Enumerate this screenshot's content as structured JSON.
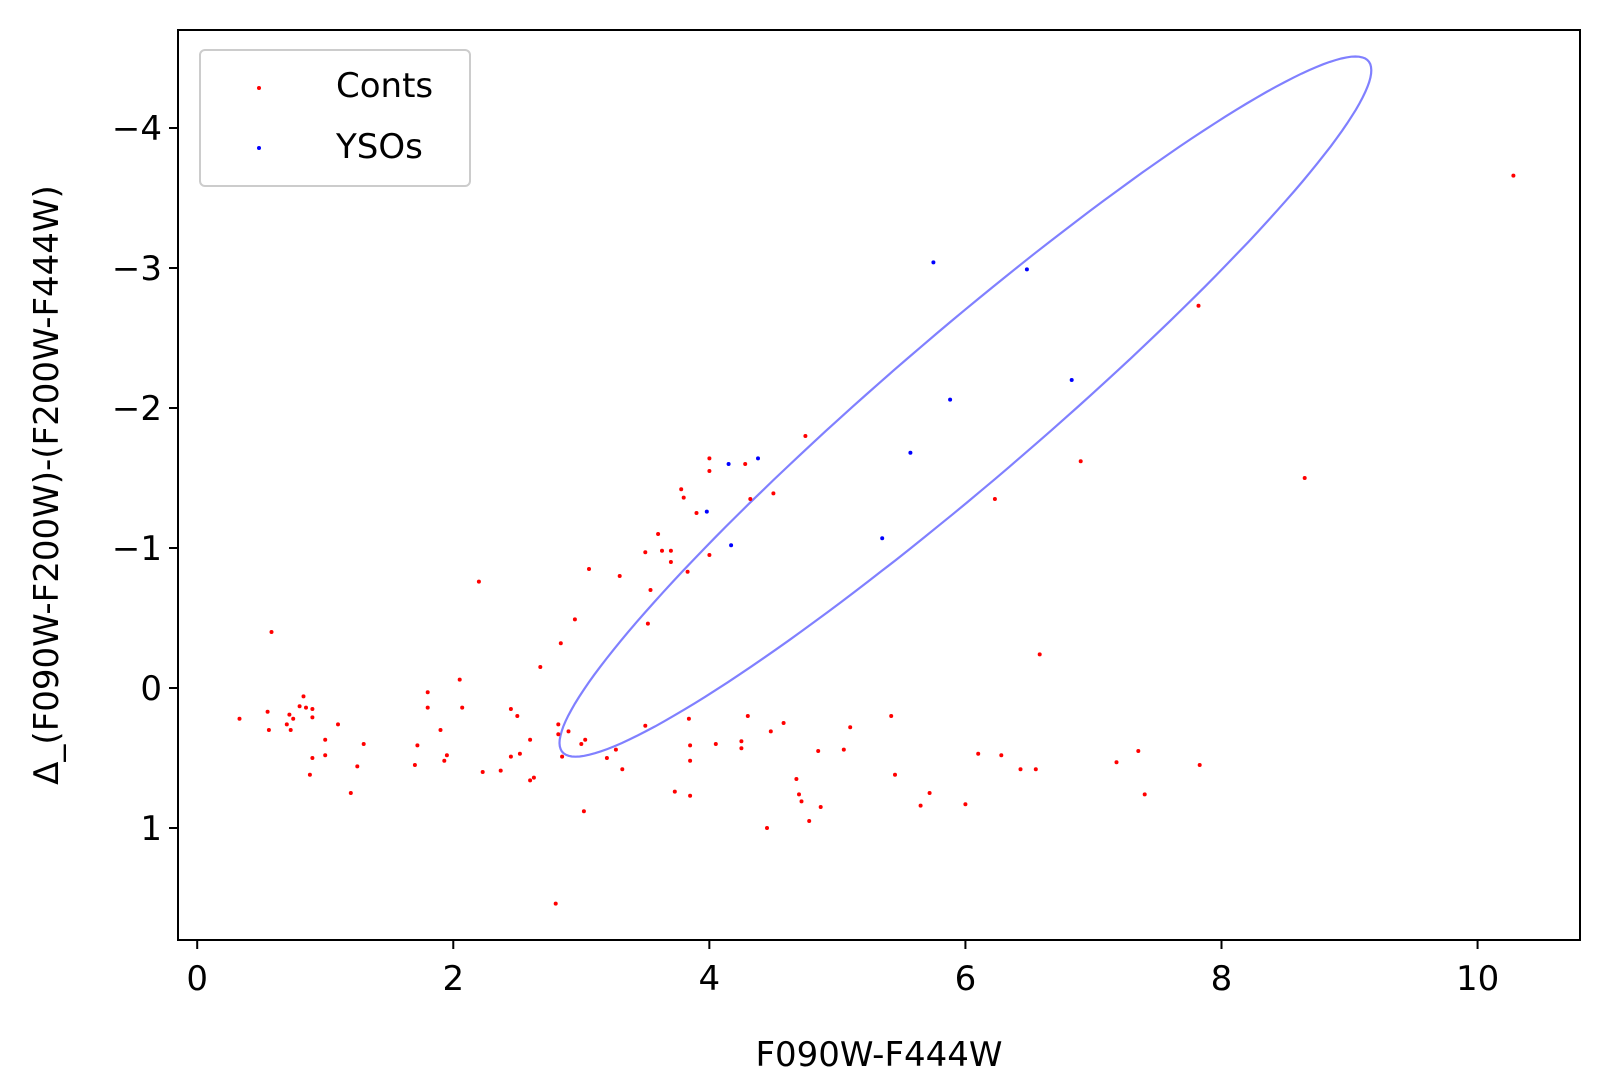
{
  "chart_data": {
    "type": "scatter",
    "xlabel": "F090W-F444W",
    "ylabel": "Δ_(F090W-F200W)-(F200W-F444W)",
    "xlim": [
      -0.15,
      10.8
    ],
    "ylim": [
      1.8,
      -4.7
    ],
    "y_inverted": true,
    "xticks": [
      0,
      2,
      4,
      6,
      8,
      10
    ],
    "xtick_labels": [
      "0",
      "2",
      "4",
      "6",
      "8",
      "10"
    ],
    "yticks": [
      -4,
      -3,
      -2,
      -1,
      0,
      1
    ],
    "ytick_labels": [
      "−4",
      "−3",
      "−2",
      "−1",
      "0",
      "1"
    ],
    "grid": false,
    "legend_placement": "top-left",
    "series": [
      {
        "name": "Conts",
        "color": "#ff0000",
        "points": [
          [
            0.33,
            0.22
          ],
          [
            0.55,
            0.17
          ],
          [
            0.56,
            0.3
          ],
          [
            0.58,
            -0.4
          ],
          [
            0.7,
            0.26
          ],
          [
            0.72,
            0.19
          ],
          [
            0.73,
            0.3
          ],
          [
            0.75,
            0.22
          ],
          [
            0.8,
            0.13
          ],
          [
            0.83,
            0.06
          ],
          [
            0.85,
            0.14
          ],
          [
            0.88,
            0.62
          ],
          [
            0.9,
            0.15
          ],
          [
            0.9,
            0.21
          ],
          [
            0.9,
            0.5
          ],
          [
            1.0,
            0.37
          ],
          [
            1.0,
            0.48
          ],
          [
            1.1,
            0.26
          ],
          [
            1.2,
            0.75
          ],
          [
            1.25,
            0.56
          ],
          [
            1.3,
            0.4
          ],
          [
            1.7,
            0.55
          ],
          [
            1.72,
            0.41
          ],
          [
            1.8,
            0.03
          ],
          [
            1.8,
            0.14
          ],
          [
            1.9,
            0.3
          ],
          [
            1.93,
            0.52
          ],
          [
            1.95,
            0.48
          ],
          [
            2.05,
            -0.06
          ],
          [
            2.07,
            0.14
          ],
          [
            2.2,
            -0.76
          ],
          [
            2.23,
            0.6
          ],
          [
            2.37,
            0.59
          ],
          [
            2.45,
            0.15
          ],
          [
            2.45,
            0.49
          ],
          [
            2.5,
            0.2
          ],
          [
            2.52,
            0.47
          ],
          [
            2.6,
            0.37
          ],
          [
            2.6,
            0.66
          ],
          [
            2.63,
            0.64
          ],
          [
            2.68,
            -0.15
          ],
          [
            2.8,
            1.54
          ],
          [
            2.82,
            0.26
          ],
          [
            2.82,
            0.33
          ],
          [
            2.84,
            -0.32
          ],
          [
            2.85,
            0.49
          ],
          [
            2.9,
            0.31
          ],
          [
            2.95,
            -0.49
          ],
          [
            3.0,
            0.4
          ],
          [
            3.02,
            0.88
          ],
          [
            3.03,
            0.37
          ],
          [
            3.06,
            -0.85
          ],
          [
            3.2,
            0.5
          ],
          [
            3.27,
            0.44
          ],
          [
            3.3,
            -0.8
          ],
          [
            3.32,
            0.58
          ],
          [
            3.5,
            0.27
          ],
          [
            3.5,
            -0.97
          ],
          [
            3.52,
            -0.46
          ],
          [
            3.54,
            -0.7
          ],
          [
            3.6,
            -1.1
          ],
          [
            3.63,
            -0.98
          ],
          [
            3.7,
            -0.9
          ],
          [
            3.7,
            -0.98
          ],
          [
            3.73,
            0.74
          ],
          [
            3.78,
            -1.42
          ],
          [
            3.8,
            -1.36
          ],
          [
            3.83,
            -0.83
          ],
          [
            3.84,
            0.22
          ],
          [
            3.85,
            0.41
          ],
          [
            3.85,
            0.52
          ],
          [
            3.85,
            0.77
          ],
          [
            3.9,
            -1.25
          ],
          [
            4.0,
            -1.64
          ],
          [
            4.0,
            -1.55
          ],
          [
            4.0,
            -0.95
          ],
          [
            4.05,
            0.4
          ],
          [
            4.25,
            0.38
          ],
          [
            4.25,
            0.43
          ],
          [
            4.28,
            -1.6
          ],
          [
            4.3,
            0.2
          ],
          [
            4.32,
            -1.35
          ],
          [
            4.45,
            1.0
          ],
          [
            4.48,
            0.31
          ],
          [
            4.5,
            -1.39
          ],
          [
            4.58,
            0.25
          ],
          [
            4.68,
            0.65
          ],
          [
            4.7,
            0.76
          ],
          [
            4.72,
            0.81
          ],
          [
            4.75,
            -1.8
          ],
          [
            4.78,
            0.95
          ],
          [
            4.85,
            0.45
          ],
          [
            4.87,
            0.85
          ],
          [
            5.05,
            0.44
          ],
          [
            5.1,
            0.28
          ],
          [
            5.42,
            0.2
          ],
          [
            5.45,
            0.62
          ],
          [
            5.65,
            0.84
          ],
          [
            5.72,
            0.75
          ],
          [
            6.0,
            0.83
          ],
          [
            6.1,
            0.47
          ],
          [
            6.23,
            -1.35
          ],
          [
            6.28,
            0.48
          ],
          [
            6.43,
            0.58
          ],
          [
            6.55,
            0.58
          ],
          [
            6.58,
            -0.24
          ],
          [
            6.9,
            -1.62
          ],
          [
            7.18,
            0.53
          ],
          [
            7.35,
            0.45
          ],
          [
            7.4,
            0.76
          ],
          [
            7.82,
            -2.73
          ],
          [
            7.83,
            0.55
          ],
          [
            8.65,
            -1.5
          ],
          [
            10.28,
            -3.66
          ]
        ]
      },
      {
        "name": "YSOs",
        "color": "#0000ff",
        "points": [
          [
            3.98,
            -1.26
          ],
          [
            4.15,
            -1.6
          ],
          [
            4.17,
            -1.02
          ],
          [
            4.38,
            -1.64
          ],
          [
            5.35,
            -1.07
          ],
          [
            5.57,
            -1.68
          ],
          [
            5.75,
            -3.04
          ],
          [
            5.88,
            -2.06
          ],
          [
            6.48,
            -2.99
          ],
          [
            6.83,
            -2.2
          ]
        ]
      }
    ],
    "ellipse": {
      "color": "#8080ff",
      "center": [
        6.0,
        -2.01
      ],
      "semi_major": 4.0,
      "semi_minor": 0.55,
      "angle_deg": -38
    }
  }
}
